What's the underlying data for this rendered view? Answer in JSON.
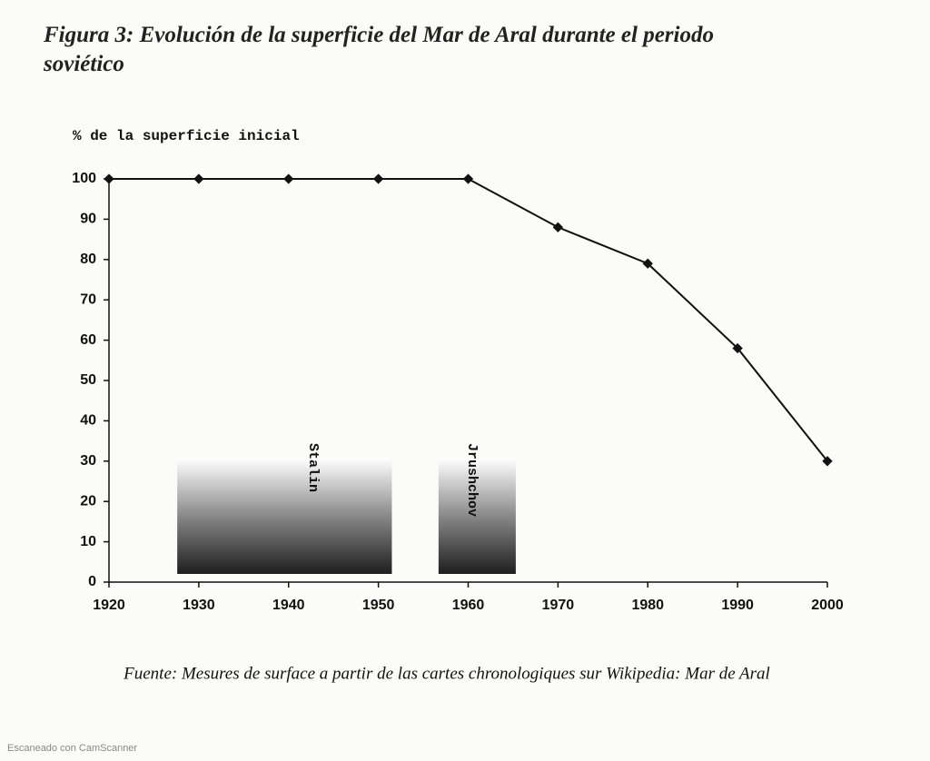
{
  "chart_data": {
    "type": "line",
    "title": "Figura 3: Evolución de la superficie del Mar de Aral durante el periodo soviético",
    "y_label": "% de la superficie inicial",
    "source": "Fuente: Mesures de surface a partir de las cartes chronologiques sur Wikipedia: Mar de Aral",
    "x": [
      1920,
      1930,
      1940,
      1950,
      1960,
      1970,
      1980,
      1990,
      2000
    ],
    "series": [
      {
        "color": "#111111",
        "values": [
          100,
          100,
          100,
          100,
          100,
          88,
          79,
          58,
          30
        ]
      }
    ],
    "xlim": [
      1920,
      2000
    ],
    "xticks": [
      1920,
      1930,
      1940,
      1950,
      1960,
      1970,
      1980,
      1990,
      2000
    ],
    "ylim": [
      0,
      100
    ],
    "yticks": [
      0,
      10,
      20,
      30,
      40,
      50,
      60,
      70,
      80,
      90,
      100
    ],
    "spans": [
      {
        "label": "Stalin",
        "x": [
          1927.6,
          1951.5
        ]
      },
      {
        "label": "Jrushchov",
        "x": [
          1956.7,
          1965.3
        ]
      }
    ]
  },
  "watermark": "Escaneado con CamScanner"
}
